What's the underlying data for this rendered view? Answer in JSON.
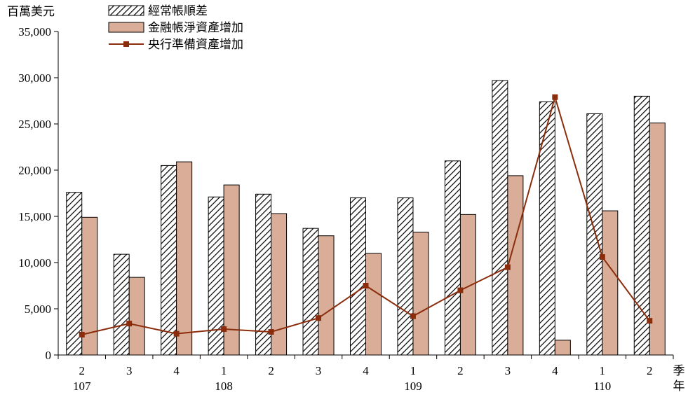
{
  "chart_data": {
    "type": "bar",
    "ylabel": "百萬美元",
    "xlabel_quarter": "季",
    "xlabel_year": "年",
    "ylim": [
      0,
      35000
    ],
    "yticks": [
      0,
      5000,
      10000,
      15000,
      20000,
      25000,
      30000,
      35000
    ],
    "ytick_labels": [
      "0",
      "5,000",
      "10,000",
      "15,000",
      "20,000",
      "25,000",
      "30,000",
      "35,000"
    ],
    "categories": [
      "2",
      "3",
      "4",
      "1",
      "2",
      "3",
      "4",
      "1",
      "2",
      "3",
      "4",
      "1",
      "2"
    ],
    "year_groups": [
      {
        "label": "107",
        "start": 0,
        "end": 2
      },
      {
        "label": "108",
        "start": 3,
        "end": 6
      },
      {
        "label": "109",
        "start": 7,
        "end": 10
      },
      {
        "label": "110",
        "start": 11,
        "end": 12
      }
    ],
    "legend": {
      "position": "top-left"
    },
    "series": [
      {
        "name": "經常帳順差",
        "kind": "bar",
        "style": "hatched",
        "values": [
          17600,
          10900,
          20500,
          17100,
          17400,
          13700,
          17000,
          17000,
          21000,
          29700,
          27400,
          26100,
          28000
        ]
      },
      {
        "name": "金融帳淨資產增加",
        "kind": "bar",
        "color": "#d9ad98",
        "values": [
          14900,
          8400,
          20900,
          18400,
          15300,
          12900,
          11000,
          13300,
          15200,
          19400,
          1600,
          15600,
          25100
        ]
      },
      {
        "name": "央行準備資產增加",
        "kind": "line",
        "color": "#8b2d0c",
        "values": [
          2200,
          3400,
          2300,
          2800,
          2500,
          4000,
          7500,
          4200,
          7000,
          9500,
          27900,
          10600,
          3700
        ]
      }
    ]
  }
}
